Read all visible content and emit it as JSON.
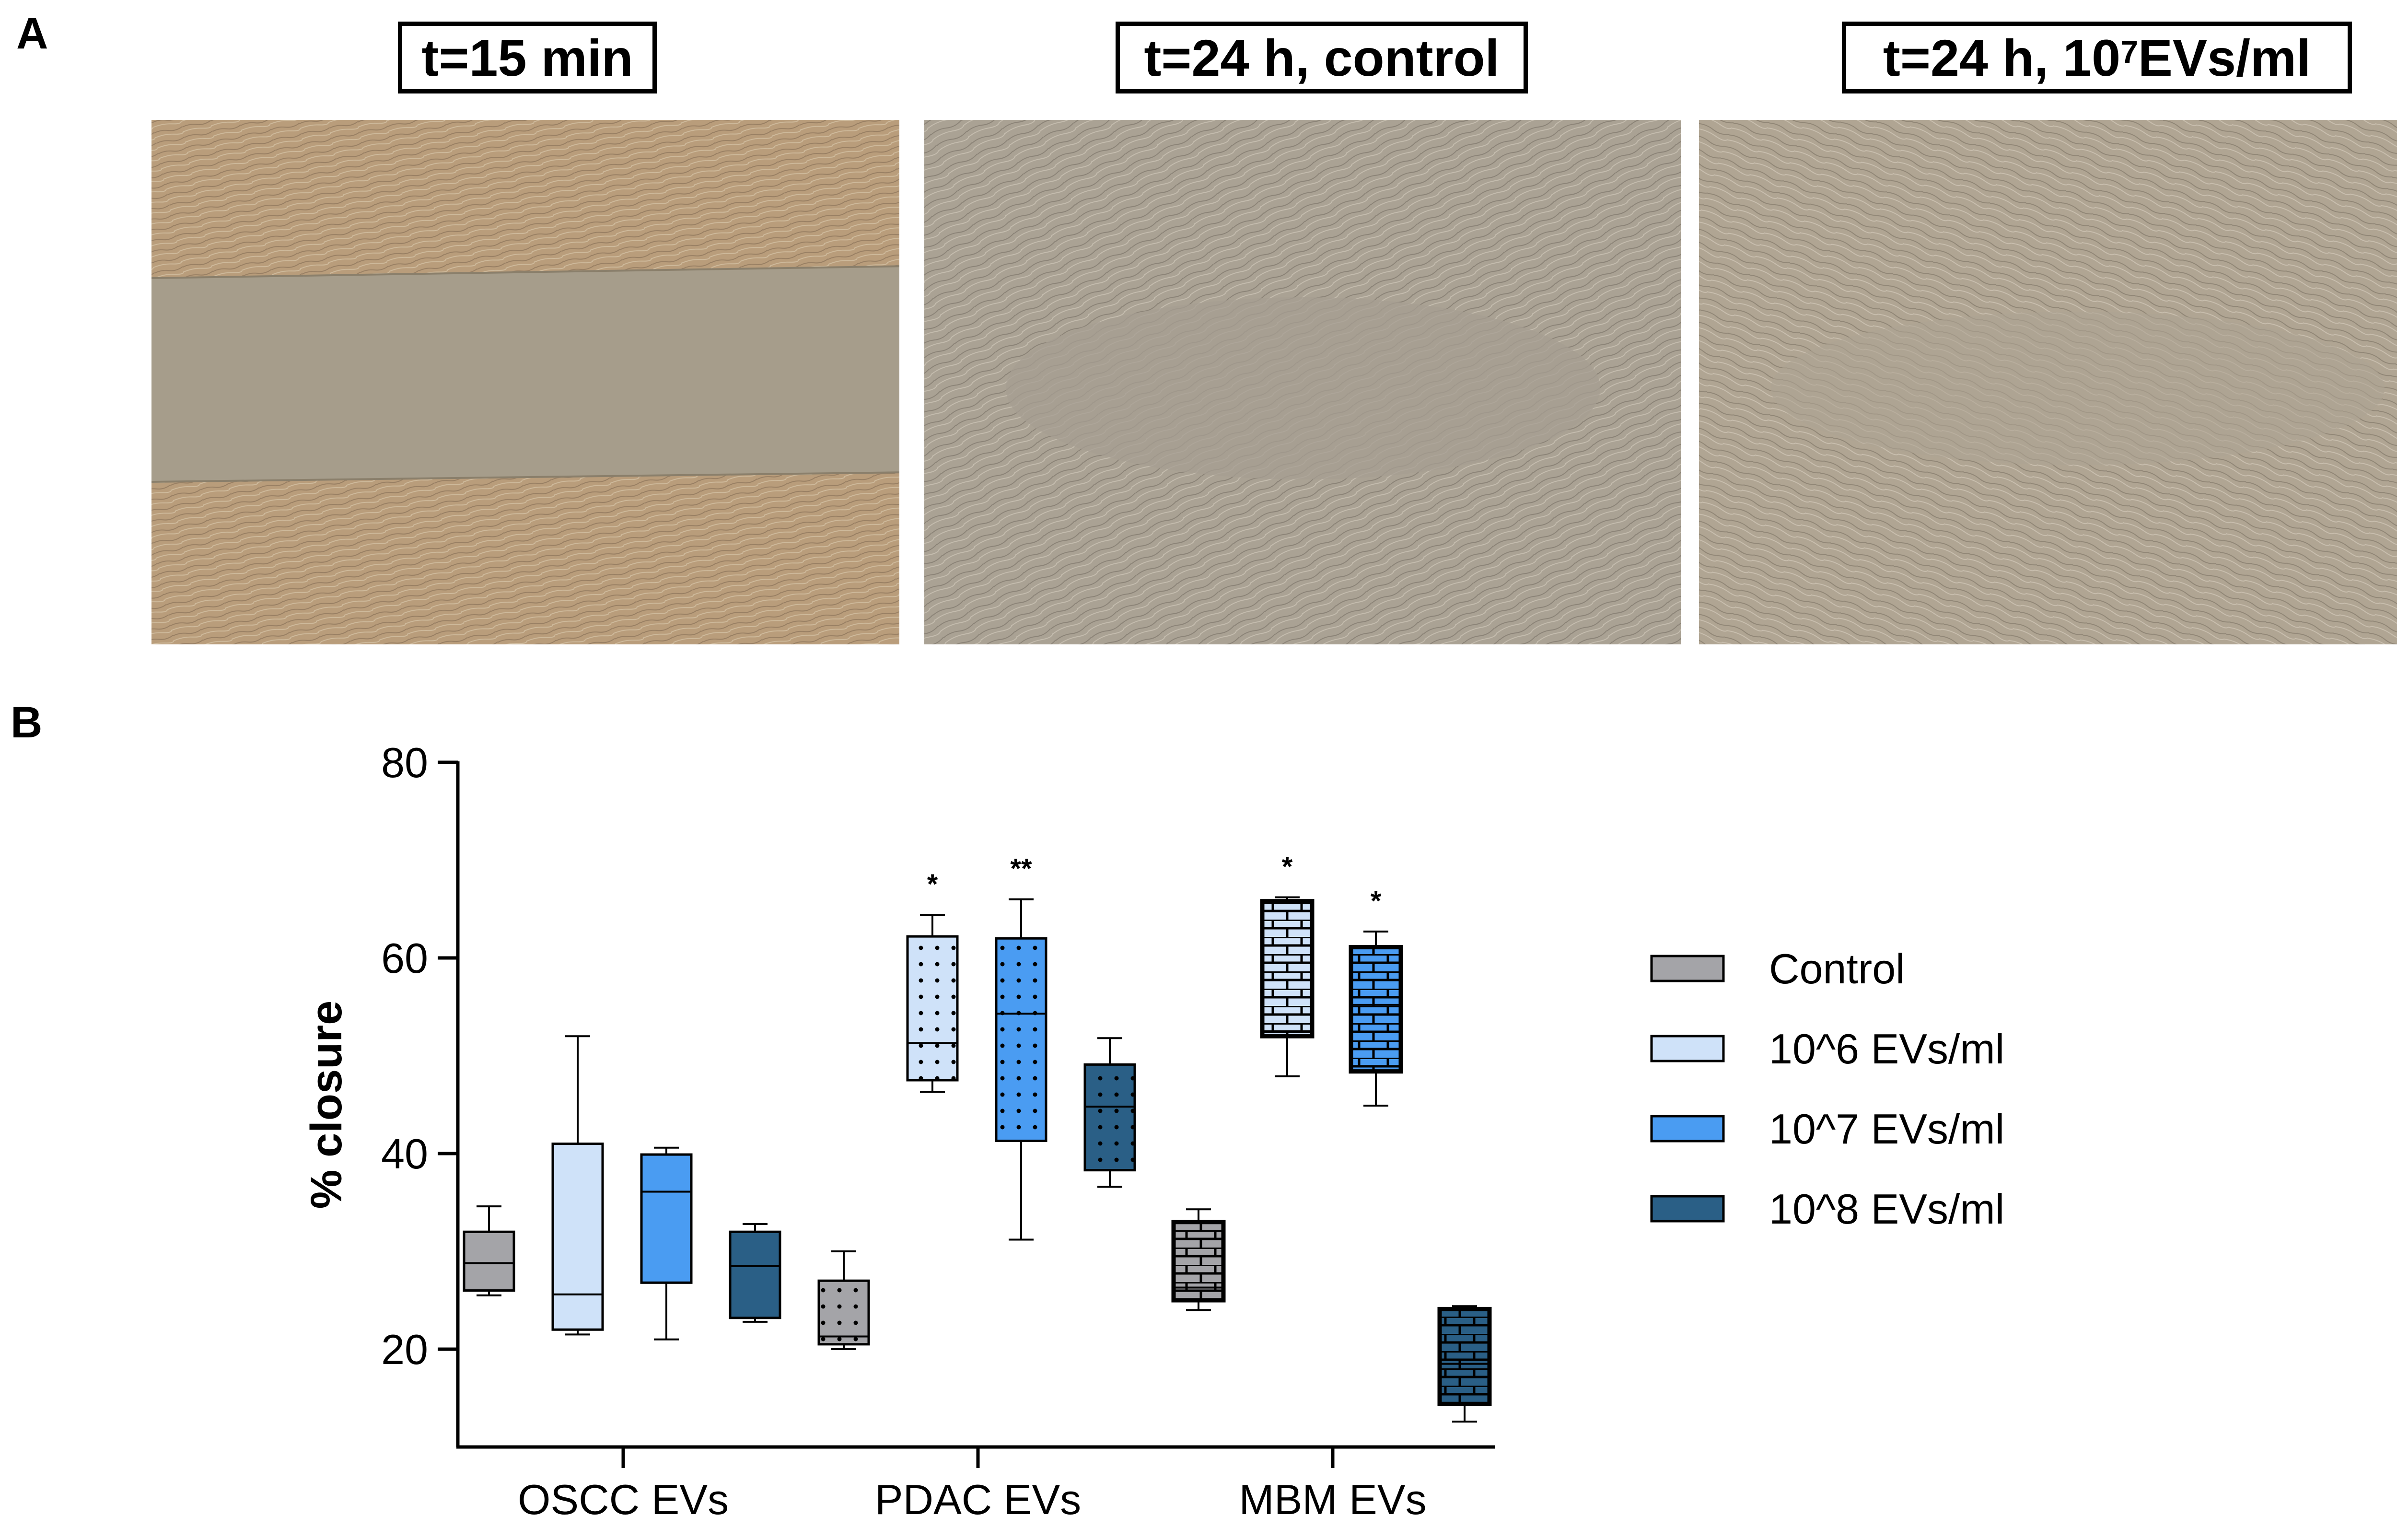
{
  "panel_a": {
    "letter": "A",
    "captions": [
      {
        "main": "t=15 min",
        "sup": "",
        "tail": ""
      },
      {
        "main": "t=24 h, control",
        "sup": "",
        "tail": ""
      },
      {
        "main": "t=24 h, 10",
        "sup": "7",
        "tail": " EVs/ml"
      }
    ]
  },
  "panel_b": {
    "letter": "B"
  },
  "chart_data": {
    "type": "box",
    "ylabel": "% closure",
    "xlabel": "",
    "ylim": [
      10,
      80
    ],
    "yticks": [
      20,
      40,
      60,
      80
    ],
    "categories": [
      "OSCC EVs",
      "PDAC EVs",
      "MBM EVs"
    ],
    "legend_position": "right",
    "series": [
      {
        "name": "Control",
        "color": "#a4a4a8",
        "pattern": "solid",
        "boxes": [
          {
            "min": 25.5,
            "q1": 26.0,
            "median": 28.8,
            "q3": 32.0,
            "max": 34.6,
            "sig": ""
          },
          {
            "min": 20.0,
            "q1": 20.5,
            "median": 21.3,
            "q3": 27.0,
            "max": 30.0,
            "sig": ""
          },
          {
            "min": 24.0,
            "q1": 25.0,
            "median": 26.3,
            "q3": 33.0,
            "max": 34.3,
            "sig": ""
          }
        ]
      },
      {
        "name": "10^6 EVs/ml",
        "color": "#cfe2f9",
        "pattern": "solid",
        "boxes": [
          {
            "min": 21.5,
            "q1": 22.0,
            "median": 25.6,
            "q3": 41.0,
            "max": 52.0,
            "sig": ""
          },
          {
            "min": 46.3,
            "q1": 47.5,
            "median": 51.3,
            "q3": 62.2,
            "max": 64.4,
            "sig": "*"
          },
          {
            "min": 47.9,
            "q1": 52.0,
            "median": 52.5,
            "q3": 65.8,
            "max": 66.2,
            "sig": "*"
          }
        ]
      },
      {
        "name": "10^7 EVs/ml",
        "color": "#4a9cf2",
        "pattern": "solid",
        "boxes": [
          {
            "min": 21.0,
            "q1": 26.8,
            "median": 36.1,
            "q3": 39.9,
            "max": 40.6,
            "sig": ""
          },
          {
            "min": 31.2,
            "q1": 41.3,
            "median": 54.3,
            "q3": 62.0,
            "max": 66.0,
            "sig": "**"
          },
          {
            "min": 44.9,
            "q1": 48.4,
            "median": 55.2,
            "q3": 61.1,
            "max": 62.7,
            "sig": "*"
          }
        ]
      },
      {
        "name": "10^8 EVs/ml",
        "color": "#2a5f86",
        "pattern": "solid",
        "boxes": [
          {
            "min": 22.8,
            "q1": 23.2,
            "median": 28.5,
            "q3": 32.0,
            "max": 32.8,
            "sig": ""
          },
          {
            "min": 36.6,
            "q1": 38.3,
            "median": 44.8,
            "q3": 49.1,
            "max": 51.8,
            "sig": ""
          },
          {
            "min": 12.6,
            "q1": 14.4,
            "median": 18.5,
            "q3": 24.1,
            "max": 24.4,
            "sig": ""
          }
        ]
      }
    ],
    "patterns_by_category": [
      "solid",
      "dots",
      "bricks"
    ]
  }
}
